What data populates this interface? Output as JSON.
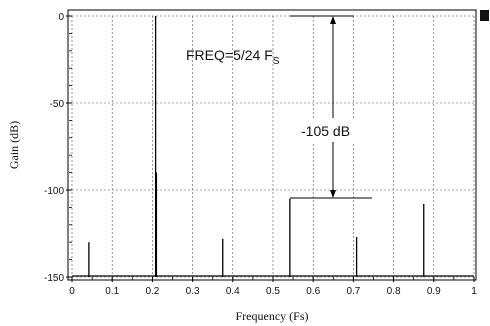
{
  "chart_data": {
    "type": "line",
    "xlabel": "Frequency (Fs)",
    "ylabel": "Gain (dB)",
    "xlim": [
      0,
      1
    ],
    "ylim": [
      -150,
      0
    ],
    "x_ticks": [
      "0",
      "0.1",
      "0.2",
      "0.3",
      "0.4",
      "0.5",
      "0.6",
      "0.7",
      "0.8",
      "0.9",
      "1"
    ],
    "y_ticks": [
      "0",
      "-50",
      "-100",
      "-150"
    ],
    "grid": true,
    "series": [
      {
        "x": [
          0.042,
          0.208,
          0.21,
          0.375,
          0.542,
          0.708,
          0.875
        ],
        "values": [
          -130,
          0,
          -90,
          -128,
          -105,
          -127,
          -108
        ]
      }
    ],
    "annotations": [
      {
        "text_main": "FREQ=5/24 F",
        "text_sub": "S"
      },
      {
        "text_main": "-105 dB"
      }
    ]
  }
}
